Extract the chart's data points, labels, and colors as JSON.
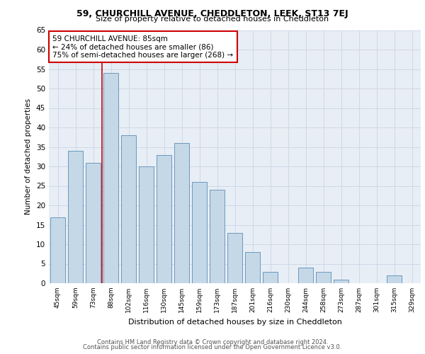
{
  "title1": "59, CHURCHILL AVENUE, CHEDDLETON, LEEK, ST13 7EJ",
  "title2": "Size of property relative to detached houses in Cheddleton",
  "xlabel": "Distribution of detached houses by size in Cheddleton",
  "ylabel": "Number of detached properties",
  "categories": [
    "45sqm",
    "59sqm",
    "73sqm",
    "88sqm",
    "102sqm",
    "116sqm",
    "130sqm",
    "145sqm",
    "159sqm",
    "173sqm",
    "187sqm",
    "201sqm",
    "216sqm",
    "230sqm",
    "244sqm",
    "258sqm",
    "273sqm",
    "287sqm",
    "301sqm",
    "315sqm",
    "329sqm"
  ],
  "values": [
    17,
    34,
    31,
    54,
    38,
    30,
    33,
    36,
    26,
    24,
    13,
    8,
    3,
    0,
    4,
    3,
    1,
    0,
    0,
    2,
    0
  ],
  "bar_color": "#c5d8e8",
  "bar_edge_color": "#5a8db5",
  "red_line_x": 2.5,
  "annotation_text": "59 CHURCHILL AVENUE: 85sqm\n← 24% of detached houses are smaller (86)\n75% of semi-detached houses are larger (268) →",
  "annotation_box_color": "#ffffff",
  "annotation_box_edge_color": "#cc0000",
  "ylim": [
    0,
    65
  ],
  "yticks": [
    0,
    5,
    10,
    15,
    20,
    25,
    30,
    35,
    40,
    45,
    50,
    55,
    60,
    65
  ],
  "grid_color": "#d0d8e8",
  "background_color": "#e8eef5",
  "footer1": "Contains HM Land Registry data © Crown copyright and database right 2024.",
  "footer2": "Contains public sector information licensed under the Open Government Licence v3.0."
}
